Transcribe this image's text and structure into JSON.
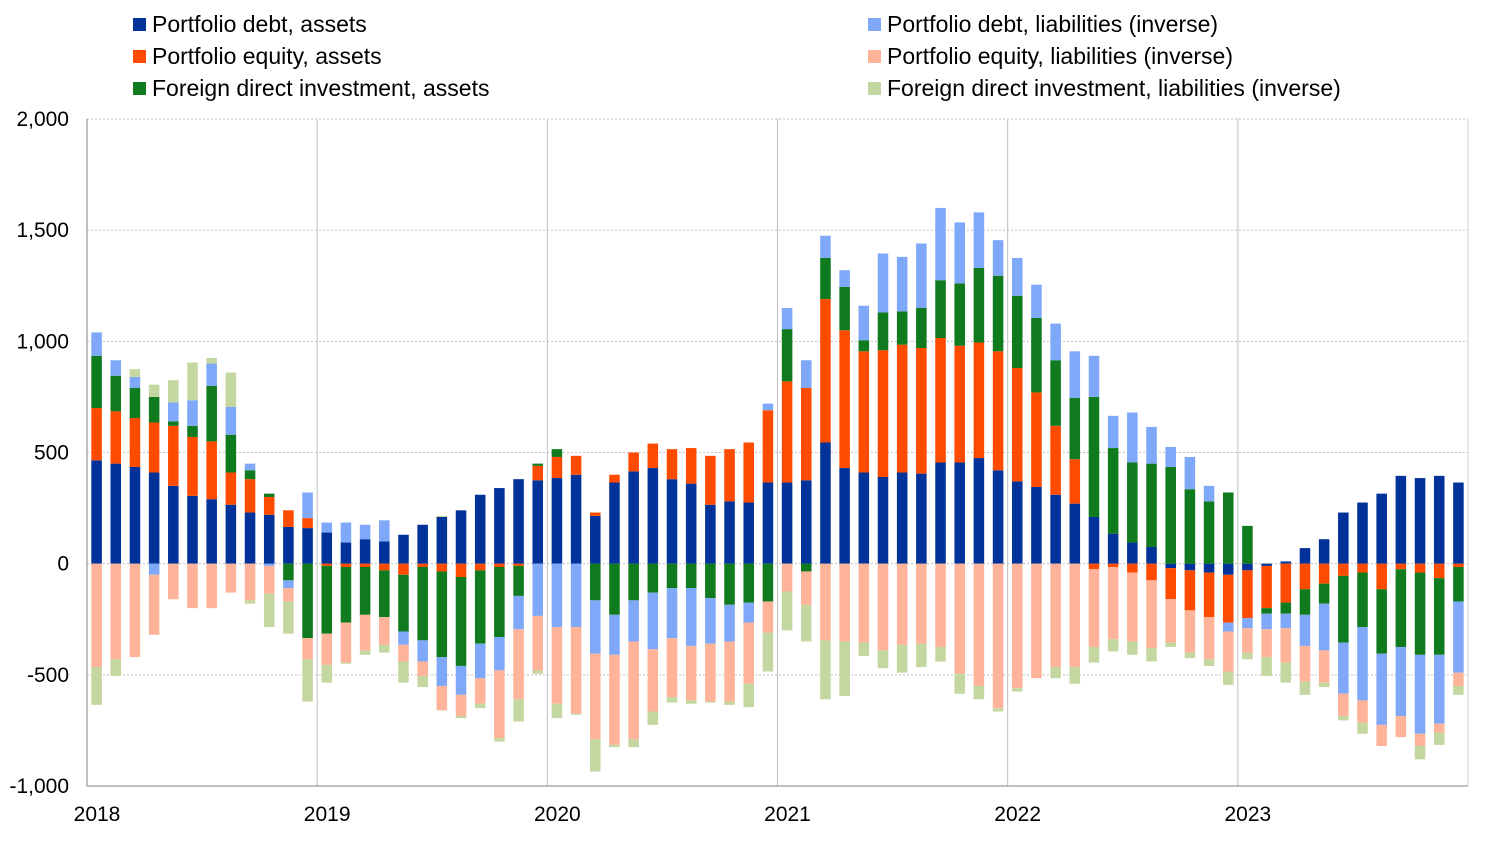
{
  "chart_data": {
    "type": "bar",
    "stacked": true,
    "ylim": [
      -1000,
      2000
    ],
    "yticks": [
      2000,
      1500,
      1000,
      500,
      0,
      -500,
      -1000
    ],
    "ytick_labels": [
      "2,000",
      "1,500",
      "1,000",
      "500",
      "0",
      "-500",
      "-1,000"
    ],
    "year_labels": [
      "2018",
      "2019",
      "2020",
      "2021",
      "2022",
      "2023"
    ],
    "months": 72,
    "grid": true,
    "legend_position": "top",
    "series": [
      {
        "name": "Portfolio debt, assets",
        "color": "#003299",
        "values": [
          465,
          450,
          435,
          410,
          350,
          305,
          290,
          265,
          230,
          220,
          165,
          160,
          140,
          95,
          110,
          100,
          130,
          175,
          210,
          240,
          310,
          340,
          380,
          375,
          385,
          400,
          215,
          365,
          415,
          430,
          380,
          360,
          265,
          280,
          275,
          365,
          365,
          375,
          545,
          430,
          410,
          390,
          410,
          405,
          455,
          455,
          475,
          420,
          370,
          345,
          310,
          270,
          210,
          135,
          95,
          75,
          -20,
          -30,
          -40,
          -50,
          -30,
          -10,
          10,
          70,
          110,
          230,
          275,
          315,
          395,
          385,
          395,
          365
        ]
      },
      {
        "name": "Portfolio equity, assets",
        "color": "#FF4B00",
        "values": [
          235,
          235,
          220,
          225,
          270,
          265,
          260,
          145,
          150,
          80,
          75,
          45,
          -10,
          -15,
          -15,
          -30,
          -50,
          -15,
          -35,
          -60,
          -30,
          -15,
          -10,
          65,
          95,
          85,
          15,
          35,
          85,
          110,
          135,
          160,
          220,
          235,
          270,
          325,
          455,
          415,
          645,
          620,
          545,
          570,
          575,
          565,
          560,
          525,
          520,
          535,
          510,
          425,
          310,
          200,
          -25,
          -15,
          -40,
          -75,
          -140,
          -180,
          -200,
          -215,
          -215,
          -190,
          -175,
          -115,
          -90,
          -55,
          -40,
          -115,
          -25,
          -40,
          -65,
          -15
        ]
      },
      {
        "name": "Foreign direct investment, assets",
        "color": "#0F7A1E",
        "values": [
          235,
          160,
          135,
          115,
          20,
          50,
          250,
          170,
          40,
          15,
          -75,
          -335,
          -305,
          -250,
          -215,
          -210,
          -255,
          -330,
          -385,
          -400,
          -330,
          -315,
          -135,
          10,
          35,
          0,
          -165,
          -230,
          -165,
          -130,
          -110,
          -110,
          -155,
          -185,
          -175,
          -170,
          235,
          -35,
          185,
          195,
          50,
          170,
          150,
          180,
          260,
          280,
          335,
          340,
          325,
          335,
          295,
          275,
          540,
          385,
          360,
          375,
          435,
          335,
          280,
          320,
          170,
          -25,
          -50,
          -115,
          -90,
          -300,
          -245,
          -290,
          -350,
          -370,
          -345,
          -155
        ]
      },
      {
        "name": "Portfolio debt, liabilities (inverse)",
        "color": "#7FA8F9",
        "values": [
          105,
          70,
          50,
          -50,
          85,
          115,
          100,
          125,
          30,
          -10,
          -35,
          115,
          45,
          90,
          65,
          95,
          -60,
          -95,
          -130,
          -130,
          -155,
          -150,
          -150,
          -235,
          -285,
          -285,
          -240,
          -180,
          -185,
          -255,
          -225,
          -260,
          -205,
          -165,
          -90,
          30,
          95,
          125,
          100,
          75,
          155,
          265,
          245,
          290,
          325,
          275,
          250,
          160,
          170,
          150,
          165,
          210,
          185,
          145,
          225,
          165,
          90,
          145,
          70,
          -40,
          -45,
          -70,
          -65,
          -140,
          -210,
          -230,
          -330,
          -320,
          -310,
          -355,
          -310,
          -320
        ]
      },
      {
        "name": "Portfolio equity, liabilities (inverse)",
        "color": "#FFB399",
        "values": [
          -465,
          -430,
          -420,
          -270,
          -160,
          -200,
          -200,
          -130,
          -165,
          -125,
          -60,
          -95,
          -140,
          -180,
          -160,
          -125,
          -75,
          -65,
          -110,
          -95,
          -115,
          -305,
          -315,
          -245,
          -345,
          -390,
          -385,
          -405,
          -440,
          -280,
          -265,
          -245,
          -260,
          -270,
          -275,
          -140,
          -125,
          -150,
          -345,
          -350,
          -355,
          -390,
          -365,
          -360,
          -375,
          -495,
          -550,
          -650,
          -560,
          -515,
          -465,
          -465,
          -350,
          -325,
          -310,
          -305,
          -195,
          -190,
          -190,
          -180,
          -110,
          -125,
          -155,
          -160,
          -145,
          -100,
          -100,
          -95,
          -95,
          -55,
          -40,
          -60
        ]
      },
      {
        "name": "Foreign direct investment, liabilities (inverse)",
        "color": "#C5D7A0",
        "values": [
          -170,
          -75,
          35,
          55,
          100,
          170,
          25,
          155,
          -15,
          -150,
          -145,
          -190,
          -80,
          -5,
          -20,
          -35,
          -95,
          -50,
          5,
          -10,
          -20,
          -15,
          -100,
          -15,
          -65,
          -5,
          -145,
          -10,
          -35,
          -60,
          -25,
          -15,
          -5,
          -15,
          -105,
          -175,
          -175,
          -165,
          -265,
          -245,
          -60,
          -80,
          -125,
          -105,
          -65,
          -90,
          -60,
          -15,
          -15,
          0,
          -50,
          -75,
          -70,
          -55,
          -60,
          -60,
          -20,
          -25,
          -30,
          -60,
          -30,
          -85,
          -90,
          -60,
          -20,
          -20,
          -50,
          0,
          0,
          -60,
          -55,
          -40
        ]
      }
    ]
  }
}
